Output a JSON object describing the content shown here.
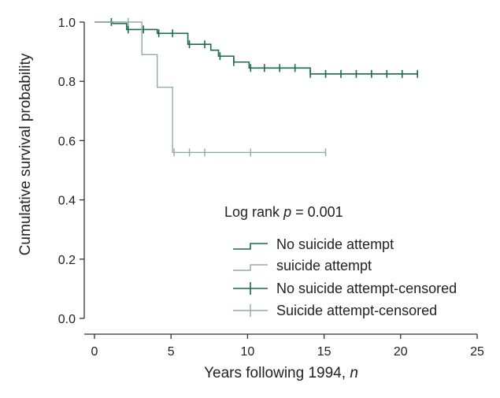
{
  "chart_data": {
    "type": "line",
    "subtype": "kaplan-meier step",
    "title": "",
    "xlabel_main": "Years following 1994, ",
    "xlabel_var": "n",
    "ylabel": "Cumulative survival probability",
    "xlim": [
      0,
      25
    ],
    "ylim": [
      0,
      1
    ],
    "x_ticks": [
      "0",
      "5",
      "10",
      "15",
      "20",
      "25"
    ],
    "y_ticks": [
      "0.0",
      "0.2",
      "0.4",
      "0.6",
      "0.8",
      "1.0"
    ],
    "grid": false,
    "legend_position": "center-right",
    "annotation": {
      "prefix": "Log rank ",
      "var": "p",
      "suffix": " = 0.001"
    },
    "series": [
      {
        "name": "No suicide attempt",
        "censored_name": "No suicide attempt-censored",
        "color": "#1a6b4a",
        "steps": [
          [
            0,
            1.0
          ],
          [
            1.2,
            0.995
          ],
          [
            2.1,
            0.975
          ],
          [
            3.2,
            0.975
          ],
          [
            4.1,
            0.962
          ],
          [
            6.1,
            0.925
          ],
          [
            7.6,
            0.905
          ],
          [
            8.1,
            0.885
          ],
          [
            9.1,
            0.865
          ],
          [
            10.1,
            0.845
          ],
          [
            14.1,
            0.825
          ],
          [
            21.1,
            0.825
          ]
        ],
        "censored": [
          1.1,
          2.2,
          3.2,
          4.2,
          5.1,
          6.2,
          7.2,
          8.2,
          9.1,
          10.2,
          11.1,
          12.1,
          13.1,
          14.1,
          15.1,
          16.1,
          17.1,
          18.1,
          19.1,
          20.1,
          21.1
        ]
      },
      {
        "name": "suicide attempt",
        "censored_name": "Suicide attempt-censored",
        "color": "#8fada3",
        "steps": [
          [
            0,
            1.0
          ],
          [
            3.1,
            0.89
          ],
          [
            4.1,
            0.78
          ],
          [
            5.1,
            0.56
          ],
          [
            15.1,
            0.56
          ]
        ],
        "censored": [
          2.2,
          5.2,
          6.2,
          7.2,
          10.2,
          15.1
        ]
      }
    ]
  }
}
